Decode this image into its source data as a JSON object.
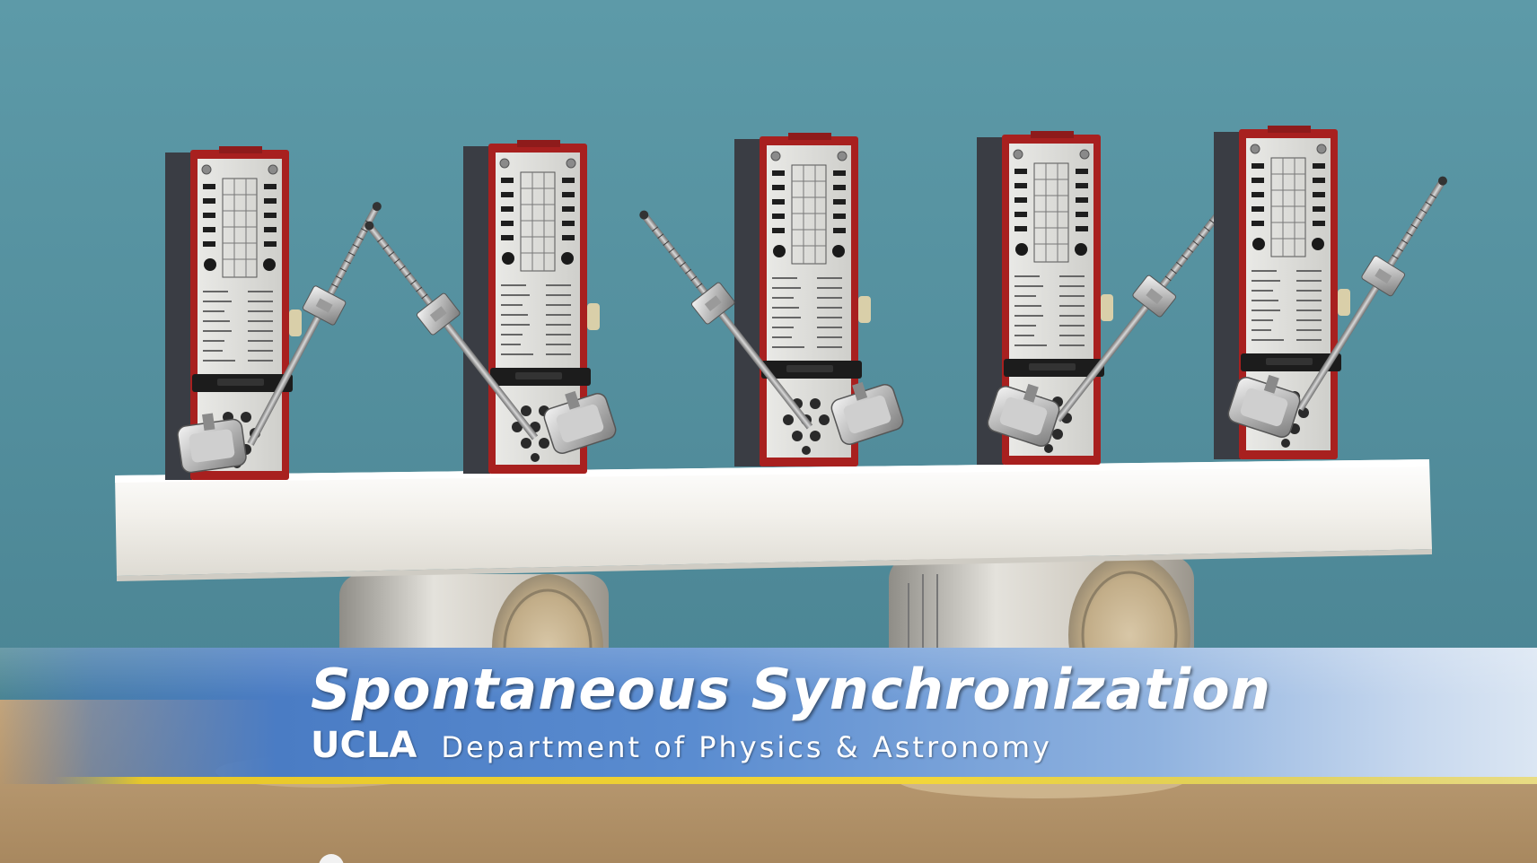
{
  "lower_third": {
    "title": "Spontaneous Synchronization",
    "organization": "UCLA",
    "department": "Department of Physics & Astronomy"
  },
  "scene": {
    "background_color": "#4f8f9f",
    "board_color": "#f1efe9",
    "metronome_body_color": "#3b3e45",
    "metronome_trim_color": "#a8201f",
    "can_color": "#c8c6be",
    "table_color": "#b79a73",
    "banner_color": "#4a7cc4",
    "stripe_color": "#e8c828",
    "metronome_count": 5,
    "can_count": 2
  },
  "video_player": {
    "scrubber_handle_icon": "scrubber-handle-icon"
  }
}
